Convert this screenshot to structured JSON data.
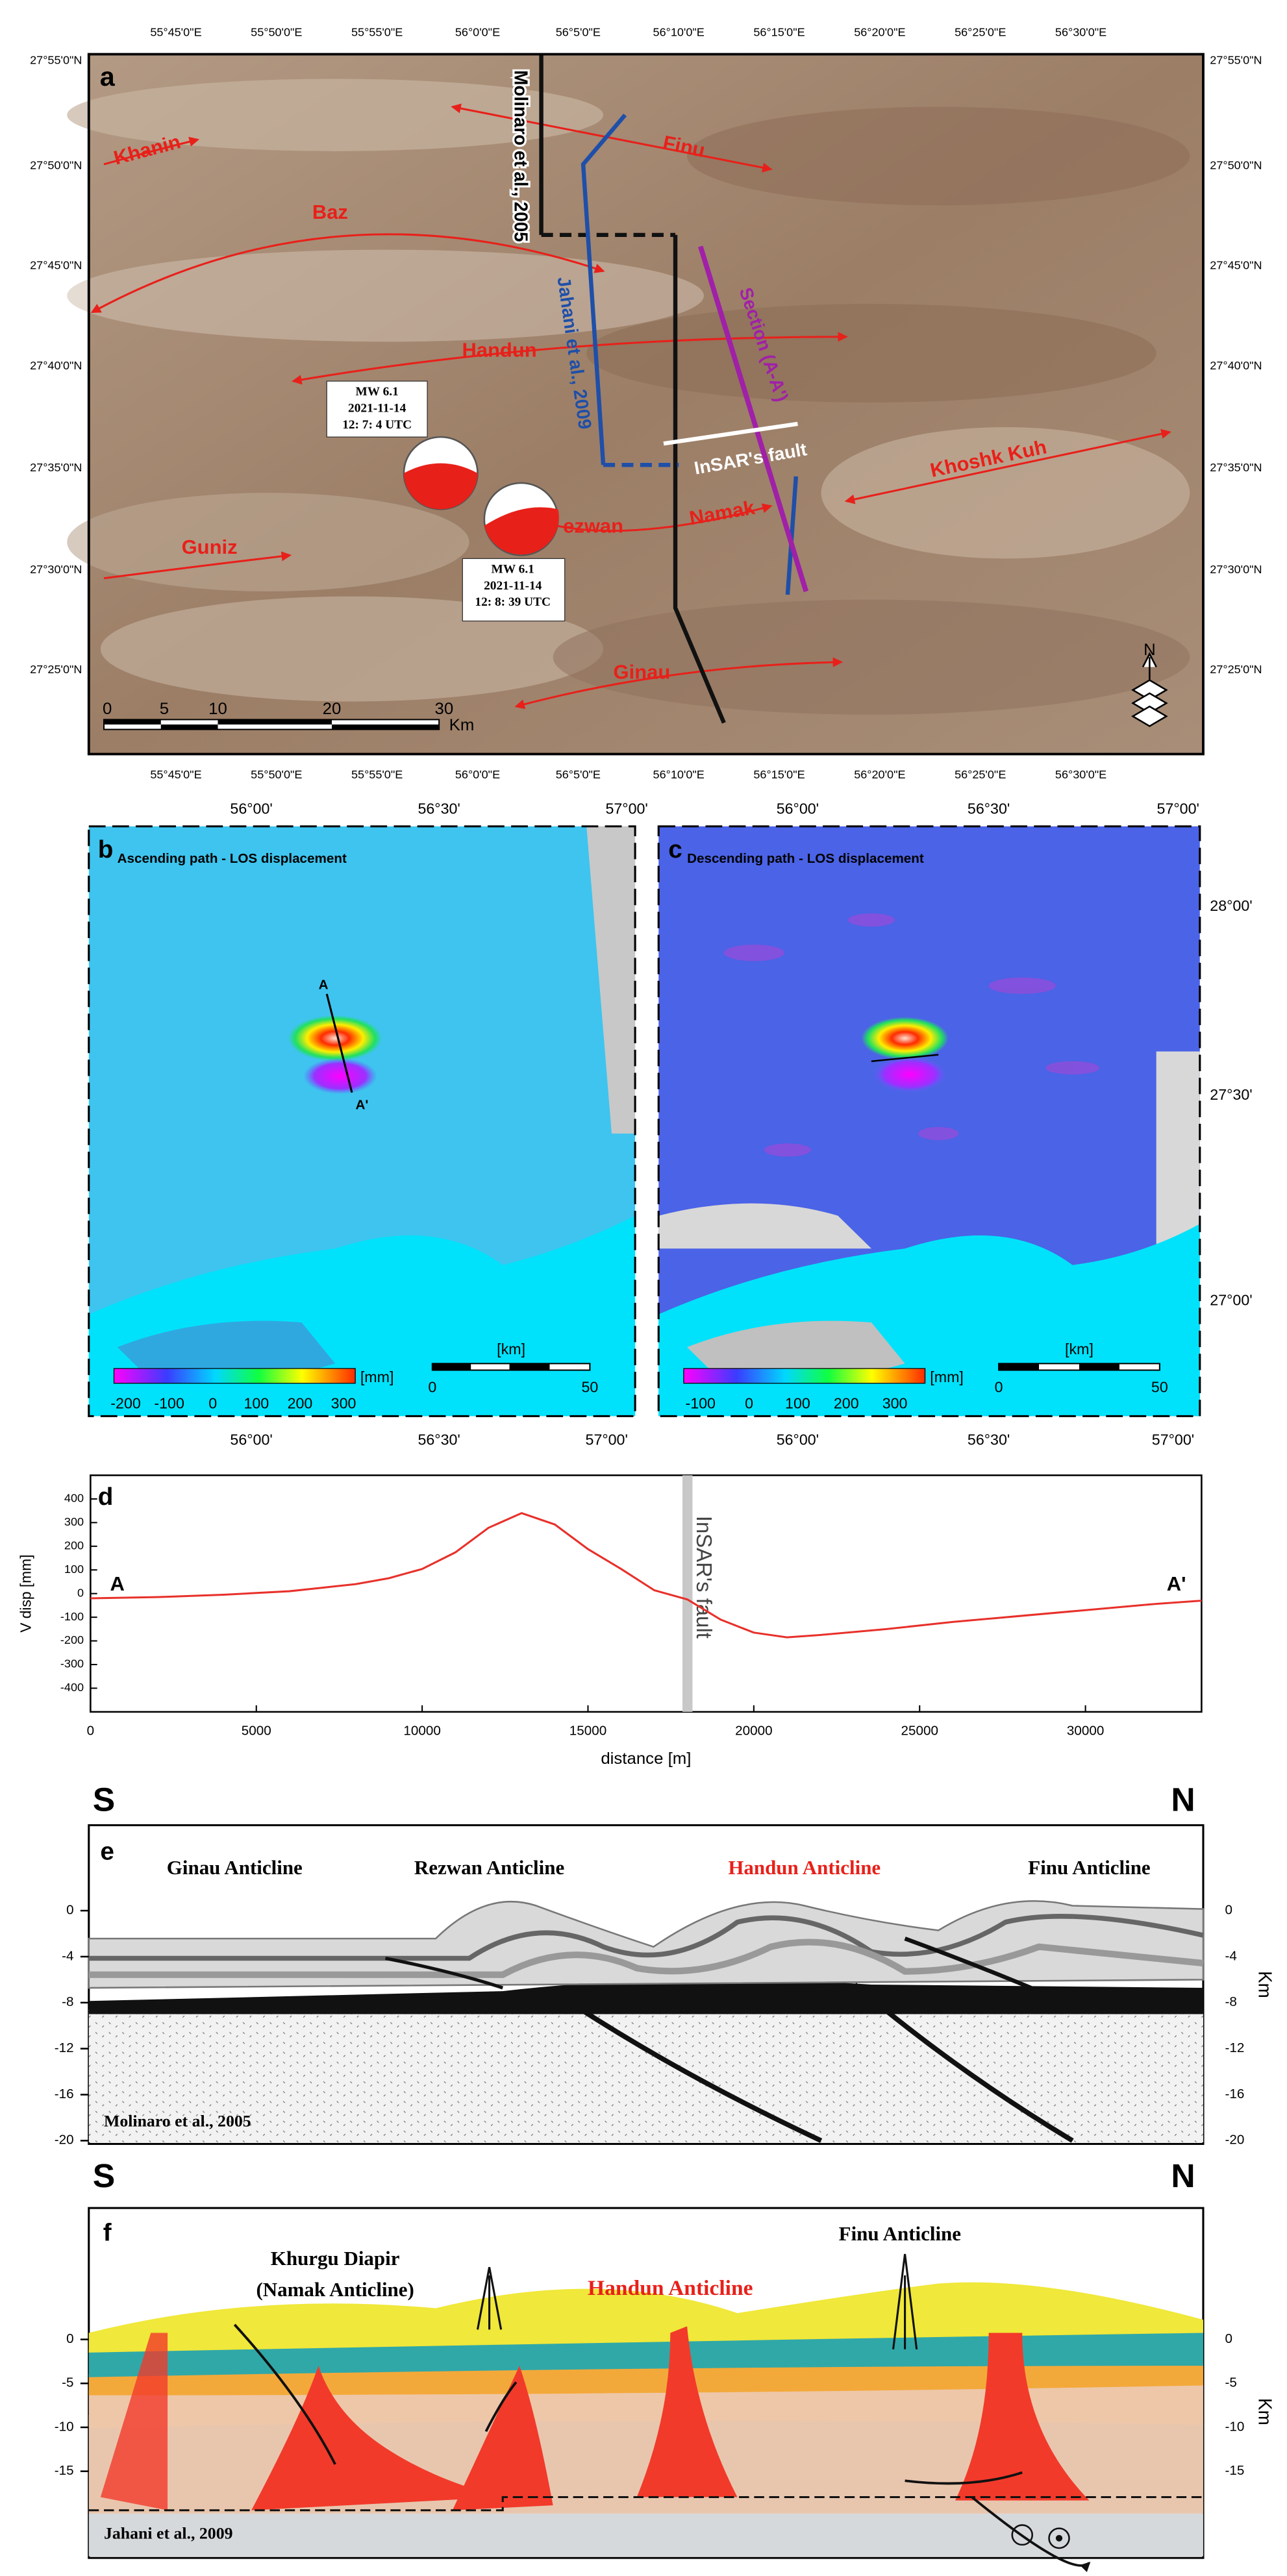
{
  "panel_a": {
    "label": "a",
    "lon_labels": [
      "55°45'0\"E",
      "55°50'0\"E",
      "55°55'0\"E",
      "56°0'0\"E",
      "56°5'0\"E",
      "56°10'0\"E",
      "56°15'0\"E",
      "56°20'0\"E",
      "56°25'0\"E",
      "56°30'0\"E"
    ],
    "lat_labels": [
      "27°55'0\"N",
      "27°50'0\"N",
      "27°45'0\"N",
      "27°40'0\"N",
      "27°35'0\"N",
      "27°30'0\"N",
      "27°25'0\"N"
    ],
    "places": [
      "Khanin",
      "Finu",
      "Baz",
      "Handun",
      "Khoshk Kuh",
      "Guniz",
      "ezwan",
      "Namak",
      "Ginau"
    ],
    "faults": [
      "Molinaro et al., 2005",
      "Jahani et al., 2009",
      "Section (A-A')",
      "InSAR's fault"
    ],
    "events": [
      {
        "magnitude": "MW 6.1",
        "date": "2021-11-14",
        "time": "12: 7: 4 UTC"
      },
      {
        "magnitude": "MW 6.1",
        "date": "2021-11-14",
        "time": "12: 8: 39 UTC"
      }
    ],
    "scale_bar": {
      "ticks": [
        0,
        5,
        10,
        20,
        30
      ],
      "unit": "Km"
    },
    "north": "N"
  },
  "panel_b": {
    "label": "b",
    "title": "Ascending path - LOS displacement",
    "lon_labels_top": [
      "56°00'",
      "56°30'",
      "57°00'"
    ],
    "lon_labels_bottom": [
      "56°00'",
      "56°30'",
      "57°00'"
    ],
    "profile": [
      "A",
      "A'"
    ],
    "colorbar": {
      "ticks": [
        -200,
        -100,
        0,
        100,
        200,
        300
      ],
      "unit": "[mm]"
    },
    "scale_bar": {
      "unit": "[km]",
      "ticks": [
        0,
        50
      ]
    }
  },
  "panel_c": {
    "label": "c",
    "title": "Descending path - LOS displacement",
    "lon_labels_top": [
      "56°00'",
      "56°30'",
      "57°00'"
    ],
    "lon_labels_bottom": [
      "56°00'",
      "56°30'",
      "57°00'"
    ],
    "lat_labels": [
      "28°00'",
      "27°30'",
      "27°00'"
    ],
    "colorbar": {
      "ticks": [
        -100,
        0,
        100,
        200,
        300
      ],
      "unit": "[mm]"
    },
    "scale_bar": {
      "unit": "[km]",
      "ticks": [
        0,
        50
      ]
    }
  },
  "chart_data": {
    "type": "line",
    "label": "d",
    "ylabel": "V disp [mm]",
    "xlabel": "distance [m]",
    "x": [
      0,
      2000,
      4000,
      6000,
      7000,
      8000,
      9000,
      10000,
      11000,
      12000,
      13000,
      14000,
      15000,
      16000,
      17000,
      18000,
      19000,
      20000,
      21000,
      22000,
      24000,
      26000,
      28000,
      30000,
      32000,
      33500
    ],
    "series": [
      {
        "color": "#e8302a",
        "values": [
          -20,
          -15,
          -5,
          10,
          25,
          40,
          65,
          104,
          174,
          278,
          340,
          292,
          188,
          104,
          14,
          -25,
          -110,
          -165,
          -185,
          -175,
          -150,
          -120,
          -95,
          -70,
          -45,
          -30
        ]
      }
    ],
    "xlim": [
      0,
      33500
    ],
    "ylim": [
      -500,
      500
    ],
    "xticks": [
      0,
      5000,
      10000,
      15000,
      20000,
      25000,
      30000
    ],
    "yticks": [
      -400,
      -300,
      -200,
      -100,
      0,
      100,
      200,
      300,
      400
    ],
    "fault_distance": 18000,
    "annotations": [
      "InSAR's fault",
      "A",
      "A'"
    ]
  },
  "panel_e": {
    "label": "e",
    "left": "S",
    "right": "N",
    "anticlines": [
      "Ginau Anticline",
      "Rezwan Anticline",
      "Handun Anticline",
      "Finu Anticline"
    ],
    "depth_ticks": [
      0,
      -4,
      -8,
      -12,
      -16,
      -20
    ],
    "depth_unit": "Km",
    "source": "Molinaro et al., 2005"
  },
  "panel_f": {
    "label": "f",
    "left": "S",
    "right": "N",
    "titles": [
      "Khurgu Diapir",
      "(Namak Anticline)",
      "Handun Anticline",
      "Finu Anticline"
    ],
    "depth_ticks": [
      0,
      -5,
      -10,
      -15
    ],
    "depth_unit": "Km",
    "source": "Jahani et al., 2009"
  }
}
